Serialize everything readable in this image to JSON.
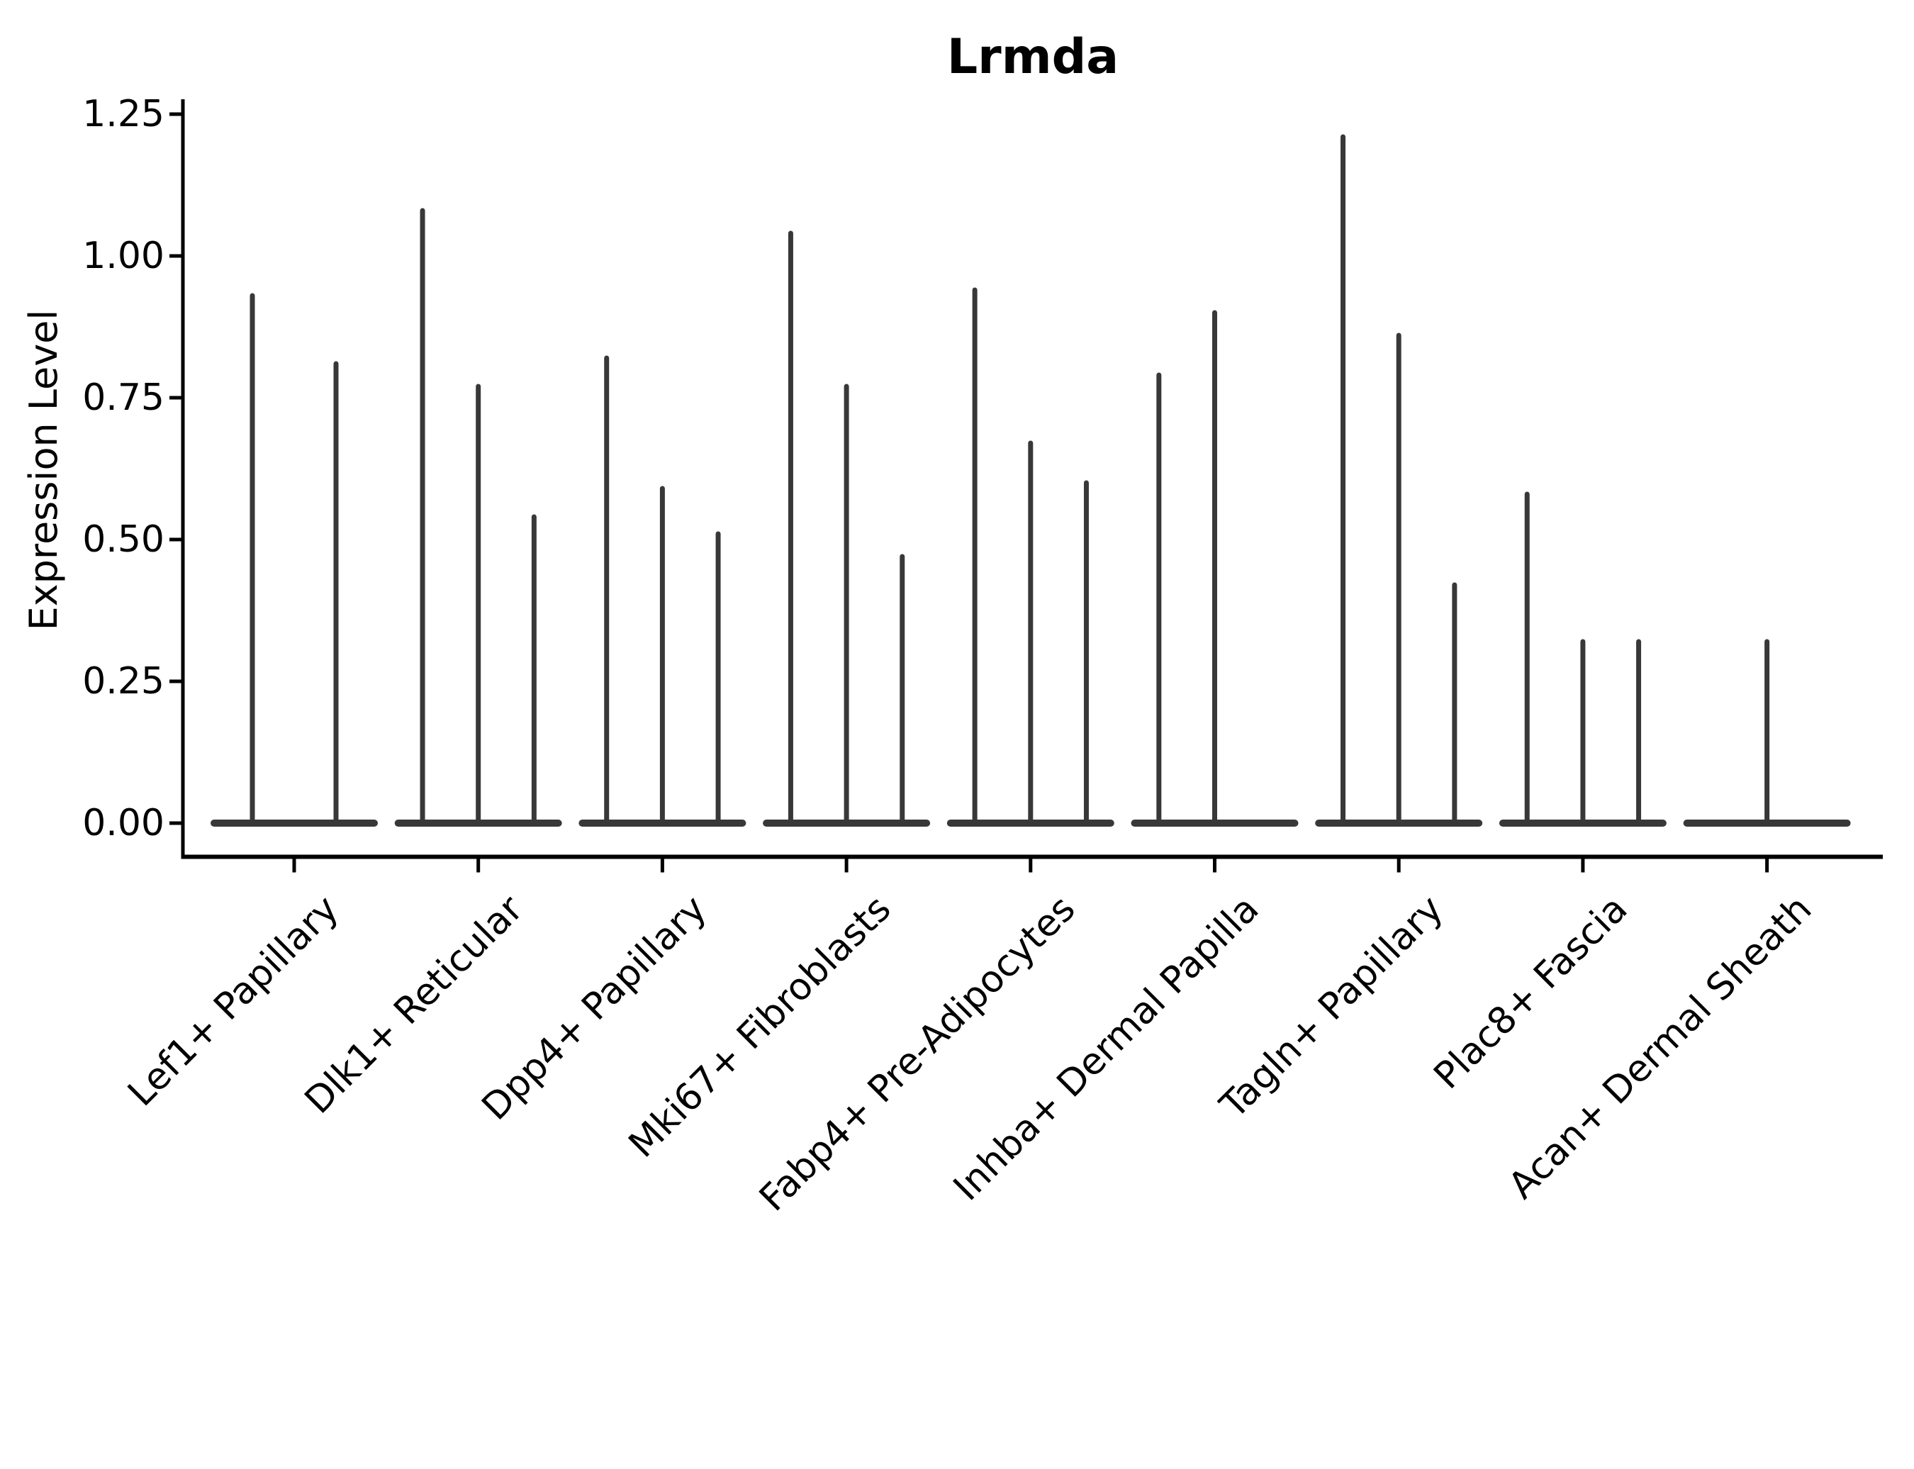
{
  "figure": {
    "title": "Lrmda",
    "background": "#ffffff",
    "y_axis": {
      "label": "Expression Level",
      "ticks": [
        "0.00",
        "0.25",
        "0.50",
        "0.75",
        "1.00",
        "1.25"
      ]
    },
    "x_axis": {
      "categories": [
        "Lef1+ Papillary",
        "Dlk1+ Reticular",
        "Dpp4+ Papillary",
        "Mki67+ Fibroblasts",
        "Fabp4+ Pre-Adipocytes",
        "Inhba+ Dermal Papilla",
        "Tagln+ Papillary",
        "Plac8+ Fascia",
        "Acan+ Dermal Sheath"
      ]
    }
  },
  "chart_data": {
    "type": "violin",
    "title": "Lrmda",
    "xlabel": "",
    "ylabel": "Expression Level",
    "ylim": [
      -0.06,
      1.27
    ],
    "yticks": [
      0.0,
      0.25,
      0.5,
      0.75,
      1.0,
      1.25
    ],
    "grid": false,
    "legend": "none",
    "categories": [
      "Lef1+ Papillary",
      "Dlk1+ Reticular",
      "Dpp4+ Papillary",
      "Mki67+ Fibroblasts",
      "Fabp4+ Pre-Adipocytes",
      "Inhba+ Dermal Papilla",
      "Tagln+ Papillary",
      "Plac8+ Fascia",
      "Acan+ Dermal Sheath"
    ],
    "series": [
      {
        "category": "Lef1+ Papillary",
        "violin_maxima": [
          0.93,
          0.81
        ]
      },
      {
        "category": "Dlk1+ Reticular",
        "violin_maxima": [
          1.08,
          0.77,
          0.54
        ]
      },
      {
        "category": "Dpp4+ Papillary",
        "violin_maxima": [
          0.82,
          0.59,
          0.51
        ]
      },
      {
        "category": "Mki67+ Fibroblasts",
        "violin_maxima": [
          1.04,
          0.77,
          0.47
        ]
      },
      {
        "category": "Fabp4+ Pre-Adipocytes",
        "violin_maxima": [
          0.94,
          0.67,
          0.6
        ]
      },
      {
        "category": "Inhba+ Dermal Papilla",
        "violin_maxima": [
          0.79,
          0.9,
          0.0
        ]
      },
      {
        "category": "Tagln+ Papillary",
        "violin_maxima": [
          1.21,
          0.86,
          0.42
        ]
      },
      {
        "category": "Plac8+ Fascia",
        "violin_maxima": [
          0.58,
          0.32,
          0.32
        ]
      },
      {
        "category": "Acan+ Dermal Sheath",
        "violin_maxima": [
          0.0,
          0.32,
          0.0
        ]
      }
    ],
    "violin_shape": "collapsed-spike-with-flat-base-at-zero",
    "colors": {
      "violin": "#383838",
      "axis": "#000000",
      "text": "#000000"
    }
  }
}
